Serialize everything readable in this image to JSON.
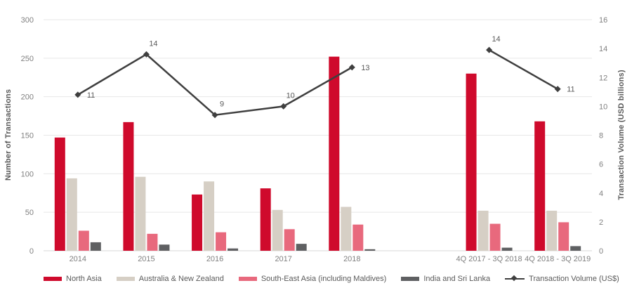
{
  "chart_data": {
    "type": "bar",
    "subtype": "grouped-bar-with-line-combo",
    "title": "",
    "categories": [
      "2014",
      "2015",
      "2016",
      "2017",
      "2018",
      "",
      "4Q 2017 - 3Q 2018",
      "4Q 2018 - 3Q 2019"
    ],
    "series": [
      {
        "name": "North Asia",
        "type": "bar",
        "color": "#CF0A2C",
        "values": [
          147,
          167,
          73,
          81,
          252,
          null,
          230,
          168
        ]
      },
      {
        "name": "Australia & New Zealand",
        "type": "bar",
        "color": "#D6CFC5",
        "values": [
          94,
          96,
          90,
          53,
          57,
          null,
          52,
          52
        ]
      },
      {
        "name": "South-East Asia (including Maldives)",
        "type": "bar",
        "color": "#E8697D",
        "values": [
          26,
          22,
          24,
          28,
          34,
          null,
          35,
          37
        ]
      },
      {
        "name": "India and Sri Lanka",
        "type": "bar",
        "color": "#5F6062",
        "values": [
          11,
          8,
          3,
          9,
          2,
          null,
          4,
          6
        ]
      }
    ],
    "line_series": {
      "name": "Transaction Volume (US$)",
      "type": "line",
      "axis": "right",
      "color": "#3F3F3F",
      "marker": "diamond",
      "values": [
        10.8,
        13.6,
        9.4,
        10.0,
        12.7,
        null,
        13.9,
        11.2
      ],
      "labels": [
        "11",
        "14",
        "9",
        "10",
        "13",
        null,
        "14",
        "11"
      ],
      "label_pos": [
        "right",
        "above",
        "above",
        "above",
        "right",
        null,
        "above",
        "right"
      ]
    },
    "ylabel_left": "Number of Transactions",
    "ylabel_right": "Transaction Volume (USD billions)",
    "xlabel": "",
    "y_left": {
      "min": 0,
      "max": 300,
      "step": 50
    },
    "y_right": {
      "min": 0,
      "max": 16,
      "step": 2
    },
    "grid": true,
    "legend_position": "bottom",
    "colors": {
      "gridline": "#E7E7E7",
      "axis_line": "#D9D9D9",
      "tick_label": "#808080",
      "data_label": "#595959"
    }
  }
}
